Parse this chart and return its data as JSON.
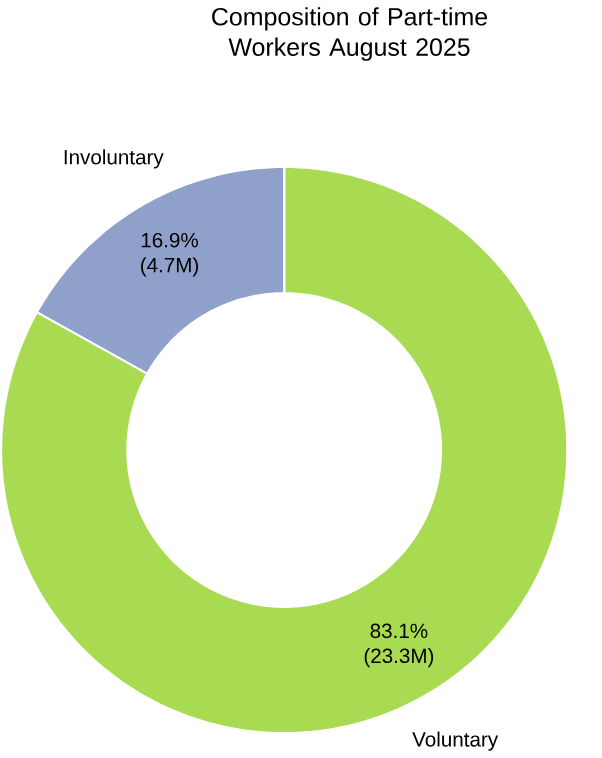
{
  "chart_data": {
    "type": "donut",
    "title": "Composition of Part-time Workers August 2025",
    "categories": [
      "Voluntary",
      "Involuntary"
    ],
    "values": [
      83.1,
      16.9
    ],
    "colors": [
      "#a8da52",
      "#8fa0cb"
    ],
    "value_labels": [
      "83.1% (23.3M)",
      "16.9% (4.7M)"
    ]
  }
}
